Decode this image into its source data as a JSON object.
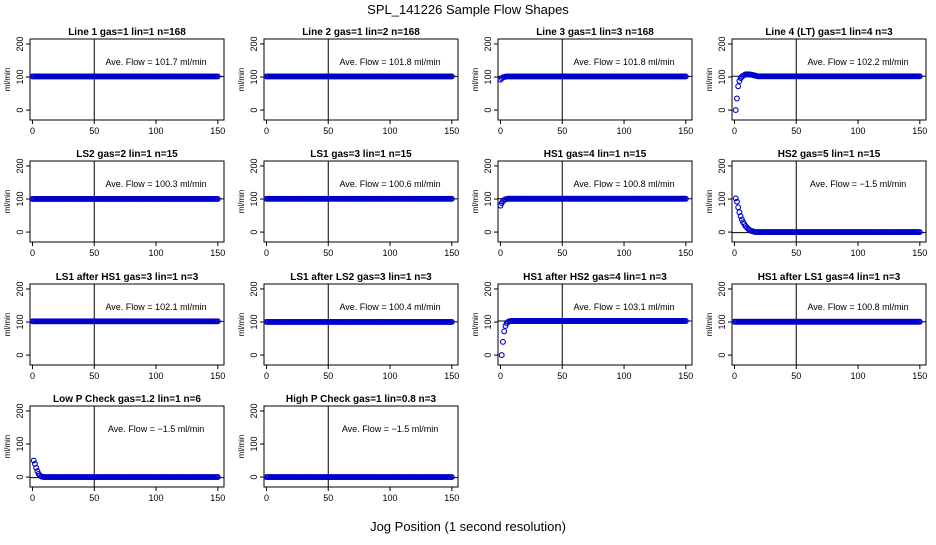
{
  "figure": {
    "title": "SPL_141226  Sample Flow Shapes",
    "xlabel": "Jog Position (1 second resolution)",
    "ylabel": "ml/min",
    "point_color": "#0000CC",
    "reference_line_x": 50,
    "xlim": [
      -2,
      155
    ],
    "ylim": [
      -30,
      215
    ],
    "xticks": [
      0,
      50,
      100,
      150
    ],
    "yticks": [
      0,
      100,
      200
    ]
  },
  "chart_data": [
    {
      "type": "scatter",
      "title": "Line 1 gas=1 lin=1 n=168",
      "annotation": "Ave. Flow = 101.7  ml/min",
      "hline": 101.7,
      "shape": "flat",
      "level": 101.7
    },
    {
      "type": "scatter",
      "title": "Line 2 gas=1 lin=2 n=168",
      "annotation": "Ave. Flow = 101.8  ml/min",
      "hline": 101.8,
      "shape": "flat",
      "level": 101.8
    },
    {
      "type": "scatter",
      "title": "Line 3 gas=1 lin=3 n=168",
      "annotation": "Ave. Flow = 101.8  ml/min",
      "hline": 101.8,
      "shape": "rise",
      "level": 101.8,
      "start": [
        [
          0,
          92
        ],
        [
          1,
          96
        ],
        [
          2,
          99
        ],
        [
          3,
          100
        ],
        [
          4,
          101
        ]
      ]
    },
    {
      "type": "scatter",
      "title": "Line 4 (LT) gas=1 lin=4 n=3",
      "annotation": "Ave. Flow = 102.2  ml/min",
      "hline": 102.2,
      "shape": "rise",
      "level": 102.2,
      "start": [
        [
          1,
          0
        ],
        [
          2,
          35
        ],
        [
          3,
          72
        ],
        [
          4,
          88
        ],
        [
          5,
          97
        ],
        [
          6,
          101
        ],
        [
          7,
          104
        ],
        [
          8,
          106
        ],
        [
          9,
          108
        ],
        [
          10,
          108
        ],
        [
          11,
          108
        ],
        [
          12,
          108
        ],
        [
          13,
          107
        ],
        [
          14,
          107
        ],
        [
          15,
          106
        ],
        [
          16,
          105
        ],
        [
          17,
          104
        ],
        [
          18,
          103
        ]
      ]
    },
    {
      "type": "scatter",
      "title": "LS2 gas=2 lin=1 n=15",
      "annotation": "Ave. Flow = 100.3  ml/min",
      "hline": 100.3,
      "shape": "flat",
      "level": 100.3
    },
    {
      "type": "scatter",
      "title": "LS1 gas=3 lin=1 n=15",
      "annotation": "Ave. Flow = 100.6  ml/min",
      "hline": 100.6,
      "shape": "flat",
      "level": 100.6
    },
    {
      "type": "scatter",
      "title": "HS1 gas=4 lin=1 n=15",
      "annotation": "Ave. Flow = 100.8  ml/min",
      "hline": 100.8,
      "shape": "rise",
      "level": 100.8,
      "start": [
        [
          0,
          80
        ],
        [
          1,
          88
        ],
        [
          2,
          94
        ],
        [
          3,
          97
        ],
        [
          4,
          99
        ],
        [
          5,
          100
        ]
      ]
    },
    {
      "type": "scatter",
      "title": "HS2 gas=5 lin=1 n=15",
      "annotation": "Ave. Flow = −1.5  ml/min",
      "hline": -1.5,
      "shape": "decay",
      "level": 0,
      "start": [
        [
          1,
          102
        ],
        [
          2,
          92
        ],
        [
          3,
          75
        ],
        [
          4,
          60
        ],
        [
          5,
          48
        ],
        [
          6,
          38
        ],
        [
          7,
          30
        ],
        [
          8,
          24
        ],
        [
          9,
          18
        ],
        [
          10,
          14
        ],
        [
          11,
          10
        ],
        [
          12,
          7
        ],
        [
          13,
          5
        ],
        [
          14,
          3
        ],
        [
          15,
          2
        ],
        [
          16,
          1
        ]
      ]
    },
    {
      "type": "scatter",
      "title": "LS1 after HS1 gas=3 lin=1 n=3",
      "annotation": "Ave. Flow = 102.1  ml/min",
      "hline": 102.1,
      "shape": "flat",
      "level": 102.1
    },
    {
      "type": "scatter",
      "title": "LS1 after LS2 gas=3 lin=1 n=3",
      "annotation": "Ave. Flow = 100.4  ml/min",
      "hline": 100.4,
      "shape": "flat",
      "level": 100.4
    },
    {
      "type": "scatter",
      "title": "HS1 after HS2 gas=4 lin=1 n=3",
      "annotation": "Ave. Flow = 103.1  ml/min",
      "hline": 103.1,
      "shape": "rise",
      "level": 103.1,
      "start": [
        [
          1,
          0
        ],
        [
          2,
          40
        ],
        [
          3,
          72
        ],
        [
          4,
          88
        ],
        [
          5,
          96
        ],
        [
          6,
          100
        ],
        [
          7,
          102
        ],
        [
          8,
          103
        ]
      ]
    },
    {
      "type": "scatter",
      "title": "HS1 after LS1 gas=4 lin=1 n=3",
      "annotation": "Ave. Flow = 100.8  ml/min",
      "hline": 100.8,
      "shape": "flat",
      "level": 100.8
    },
    {
      "type": "scatter",
      "title": "Low P Check gas=1.2 lin=1 n=6",
      "annotation": "Ave. Flow = −1.5  ml/min",
      "hline": -1.5,
      "shape": "decay",
      "level": 0,
      "start": [
        [
          1,
          50
        ],
        [
          2,
          40
        ],
        [
          3,
          28
        ],
        [
          4,
          18
        ],
        [
          5,
          10
        ],
        [
          6,
          5
        ],
        [
          7,
          2
        ],
        [
          8,
          1
        ]
      ]
    },
    {
      "type": "scatter",
      "title": "High P Check gas=1 lin=0.8 n=3",
      "annotation": "Ave. Flow = −1.5  ml/min",
      "hline": -1.5,
      "shape": "flat",
      "level": 0
    }
  ]
}
